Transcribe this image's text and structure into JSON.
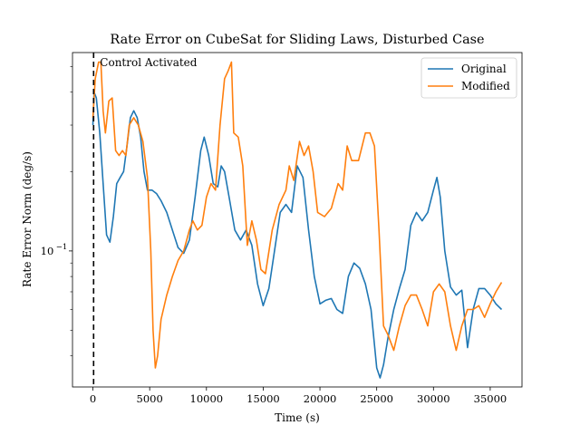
{
  "chart_data": {
    "type": "line",
    "title": "Rate Error on CubeSat for Sliding Laws, Disturbed Case",
    "xlabel": "Time (s)",
    "ylabel": "Rate Error Norm (deg/s)",
    "x_ticks": [
      0,
      5000,
      10000,
      15000,
      20000,
      25000,
      30000,
      35000
    ],
    "x_tick_labels": [
      "0",
      "5000",
      "10000",
      "15000",
      "20000",
      "25000",
      "30000",
      "35000"
    ],
    "xlim": [
      -1800,
      37800
    ],
    "y_scale": "log",
    "ylim": [
      0.0305,
      0.565
    ],
    "y_major_tick": 0.1,
    "y_major_tick_label": "10",
    "y_major_tick_exponent": "−1",
    "y_minor_ticks": [
      0.04,
      0.05,
      0.06,
      0.07,
      0.08,
      0.09,
      0.2,
      0.3,
      0.4,
      0.5
    ],
    "grid": false,
    "legend_position": "top-right",
    "annotation": {
      "text": "Control Activated",
      "x": 60,
      "style": "dashed vertical line"
    },
    "series": [
      {
        "name": "Original",
        "color": "#1f77b4",
        "points": [
          [
            0,
            0.3
          ],
          [
            100,
            0.4
          ],
          [
            300,
            0.38
          ],
          [
            600,
            0.28
          ],
          [
            900,
            0.18
          ],
          [
            1200,
            0.115
          ],
          [
            1500,
            0.108
          ],
          [
            1800,
            0.135
          ],
          [
            2100,
            0.18
          ],
          [
            2400,
            0.19
          ],
          [
            2700,
            0.2
          ],
          [
            3000,
            0.25
          ],
          [
            3300,
            0.32
          ],
          [
            3600,
            0.34
          ],
          [
            3900,
            0.32
          ],
          [
            4200,
            0.27
          ],
          [
            4500,
            0.2
          ],
          [
            4800,
            0.17
          ],
          [
            5200,
            0.17
          ],
          [
            5600,
            0.165
          ],
          [
            6000,
            0.155
          ],
          [
            6500,
            0.14
          ],
          [
            7000,
            0.12
          ],
          [
            7500,
            0.103
          ],
          [
            8000,
            0.098
          ],
          [
            8500,
            0.11
          ],
          [
            9000,
            0.16
          ],
          [
            9500,
            0.24
          ],
          [
            9800,
            0.27
          ],
          [
            10200,
            0.23
          ],
          [
            10600,
            0.18
          ],
          [
            11000,
            0.175
          ],
          [
            11300,
            0.21
          ],
          [
            11600,
            0.2
          ],
          [
            12000,
            0.16
          ],
          [
            12500,
            0.12
          ],
          [
            13000,
            0.11
          ],
          [
            13500,
            0.12
          ],
          [
            14000,
            0.105
          ],
          [
            14500,
            0.075
          ],
          [
            15000,
            0.062
          ],
          [
            15500,
            0.072
          ],
          [
            16000,
            0.1
          ],
          [
            16500,
            0.14
          ],
          [
            17000,
            0.15
          ],
          [
            17500,
            0.14
          ],
          [
            18000,
            0.21
          ],
          [
            18500,
            0.19
          ],
          [
            19000,
            0.12
          ],
          [
            19500,
            0.08
          ],
          [
            20000,
            0.063
          ],
          [
            20500,
            0.065
          ],
          [
            21000,
            0.066
          ],
          [
            21500,
            0.06
          ],
          [
            22000,
            0.058
          ],
          [
            22500,
            0.08
          ],
          [
            23000,
            0.09
          ],
          [
            23500,
            0.086
          ],
          [
            24000,
            0.075
          ],
          [
            24500,
            0.06
          ],
          [
            25000,
            0.036
          ],
          [
            25300,
            0.033
          ],
          [
            25600,
            0.037
          ],
          [
            26000,
            0.047
          ],
          [
            26500,
            0.06
          ],
          [
            27000,
            0.072
          ],
          [
            27500,
            0.085
          ],
          [
            28000,
            0.125
          ],
          [
            28500,
            0.14
          ],
          [
            29000,
            0.13
          ],
          [
            29500,
            0.14
          ],
          [
            30000,
            0.17
          ],
          [
            30300,
            0.19
          ],
          [
            30600,
            0.16
          ],
          [
            31000,
            0.1
          ],
          [
            31500,
            0.073
          ],
          [
            32000,
            0.068
          ],
          [
            32500,
            0.071
          ],
          [
            33000,
            0.043
          ],
          [
            33500,
            0.06
          ],
          [
            34000,
            0.072
          ],
          [
            34500,
            0.072
          ],
          [
            35000,
            0.068
          ],
          [
            35500,
            0.063
          ],
          [
            36000,
            0.06
          ]
        ]
      },
      {
        "name": "Modified",
        "color": "#ff7f0e",
        "points": [
          [
            0,
            0.32
          ],
          [
            200,
            0.45
          ],
          [
            500,
            0.52
          ],
          [
            700,
            0.52
          ],
          [
            900,
            0.34
          ],
          [
            1100,
            0.28
          ],
          [
            1400,
            0.37
          ],
          [
            1700,
            0.38
          ],
          [
            2000,
            0.24
          ],
          [
            2300,
            0.23
          ],
          [
            2600,
            0.24
          ],
          [
            2900,
            0.23
          ],
          [
            3200,
            0.3
          ],
          [
            3600,
            0.32
          ],
          [
            4000,
            0.3
          ],
          [
            4400,
            0.26
          ],
          [
            4800,
            0.19
          ],
          [
            5100,
            0.1
          ],
          [
            5300,
            0.05
          ],
          [
            5500,
            0.036
          ],
          [
            5700,
            0.04
          ],
          [
            6000,
            0.055
          ],
          [
            6500,
            0.068
          ],
          [
            7000,
            0.08
          ],
          [
            7500,
            0.092
          ],
          [
            8000,
            0.1
          ],
          [
            8500,
            0.12
          ],
          [
            8800,
            0.13
          ],
          [
            9200,
            0.12
          ],
          [
            9600,
            0.125
          ],
          [
            10000,
            0.16
          ],
          [
            10400,
            0.18
          ],
          [
            10800,
            0.17
          ],
          [
            11200,
            0.3
          ],
          [
            11600,
            0.45
          ],
          [
            11900,
            0.48
          ],
          [
            12200,
            0.52
          ],
          [
            12400,
            0.28
          ],
          [
            12800,
            0.27
          ],
          [
            13200,
            0.21
          ],
          [
            13600,
            0.105
          ],
          [
            14000,
            0.13
          ],
          [
            14400,
            0.11
          ],
          [
            14800,
            0.085
          ],
          [
            15200,
            0.082
          ],
          [
            15800,
            0.12
          ],
          [
            16400,
            0.15
          ],
          [
            17000,
            0.17
          ],
          [
            17300,
            0.21
          ],
          [
            17700,
            0.185
          ],
          [
            18200,
            0.26
          ],
          [
            18600,
            0.23
          ],
          [
            19000,
            0.25
          ],
          [
            19400,
            0.2
          ],
          [
            19800,
            0.14
          ],
          [
            20400,
            0.135
          ],
          [
            21000,
            0.145
          ],
          [
            21600,
            0.18
          ],
          [
            22000,
            0.17
          ],
          [
            22400,
            0.25
          ],
          [
            22800,
            0.22
          ],
          [
            23400,
            0.22
          ],
          [
            24000,
            0.28
          ],
          [
            24400,
            0.28
          ],
          [
            24800,
            0.25
          ],
          [
            25200,
            0.12
          ],
          [
            25600,
            0.052
          ],
          [
            26000,
            0.048
          ],
          [
            26500,
            0.042
          ],
          [
            27000,
            0.052
          ],
          [
            27500,
            0.062
          ],
          [
            28000,
            0.068
          ],
          [
            28500,
            0.068
          ],
          [
            29000,
            0.06
          ],
          [
            29500,
            0.052
          ],
          [
            30000,
            0.07
          ],
          [
            30500,
            0.075
          ],
          [
            31000,
            0.07
          ],
          [
            31500,
            0.052
          ],
          [
            32000,
            0.042
          ],
          [
            32500,
            0.052
          ],
          [
            33000,
            0.06
          ],
          [
            33500,
            0.06
          ],
          [
            34000,
            0.062
          ],
          [
            34500,
            0.056
          ],
          [
            35000,
            0.063
          ],
          [
            35500,
            0.07
          ],
          [
            36000,
            0.076
          ]
        ]
      }
    ]
  }
}
